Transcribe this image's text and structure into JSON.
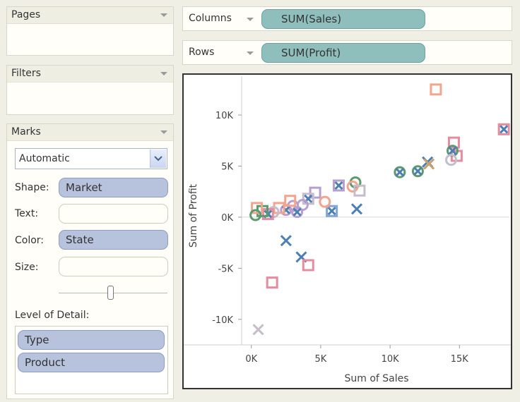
{
  "pages": {
    "title": "Pages"
  },
  "filters": {
    "title": "Filters"
  },
  "marks": {
    "title": "Marks",
    "mark_type": "Automatic",
    "shape_label": "Shape:",
    "shape_value": "Market",
    "text_label": "Text:",
    "text_value": "",
    "color_label": "Color:",
    "color_value": "State",
    "size_label": "Size:",
    "size_value": "",
    "level_of_detail_label": "Level of Detail:",
    "level_of_detail": [
      "Type",
      "Product"
    ]
  },
  "columns_shelf": {
    "label": "Columns",
    "pill": "SUM(Sales)"
  },
  "rows_shelf": {
    "label": "Rows",
    "pill": "SUM(Profit)"
  },
  "colors": {
    "pill_blue": "#b7c2dd",
    "pill_green": "#8fbfbd",
    "mark_blue": "#4e7fb3",
    "mark_pink": "#e58c9f",
    "mark_peach": "#f2a58c",
    "mark_green": "#5a9a6e",
    "mark_lilac": "#b79fd0",
    "mark_grey": "#c7bccc"
  },
  "chart_data": {
    "type": "scatter",
    "xlabel": "Sum of Sales",
    "ylabel": "Sum of Profit",
    "xlim": [
      -700,
      18600
    ],
    "ylim": [
      -12500,
      13800
    ],
    "xticks": [
      0,
      5000,
      10000,
      15000
    ],
    "xtick_labels": [
      "0K",
      "5K",
      "10K",
      "15K"
    ],
    "yticks": [
      -10000,
      -5000,
      0,
      5000,
      10000
    ],
    "ytick_labels": [
      "-10K",
      "-5K",
      "0K",
      "5K",
      "10K"
    ],
    "grid": false,
    "shapes": [
      "square",
      "cross",
      "circle",
      "crossed-circle",
      "crossed-square"
    ],
    "points": [
      {
        "x": 13300,
        "y": 12500,
        "shape": "square",
        "color": "#f2a58c"
      },
      {
        "x": 18200,
        "y": 8600,
        "shape": "crossed-square",
        "color": "#e58c9f"
      },
      {
        "x": 14600,
        "y": 7300,
        "shape": "square",
        "color": "#e58c9f"
      },
      {
        "x": 14800,
        "y": 6000,
        "shape": "square",
        "color": "#e58c9f"
      },
      {
        "x": 14500,
        "y": 6500,
        "shape": "crossed-circle",
        "color": "#5a9a6e"
      },
      {
        "x": 14400,
        "y": 5600,
        "shape": "circle",
        "color": "#c7bccc"
      },
      {
        "x": 12700,
        "y": 5400,
        "shape": "cross",
        "color": "#4e7fb3"
      },
      {
        "x": 12800,
        "y": 5200,
        "shape": "cross",
        "color": "#c8a26b"
      },
      {
        "x": 12000,
        "y": 4500,
        "shape": "crossed-circle",
        "color": "#5a9a6e"
      },
      {
        "x": 10700,
        "y": 4400,
        "shape": "crossed-circle",
        "color": "#5a9a6e"
      },
      {
        "x": 7500,
        "y": 3400,
        "shape": "circle",
        "color": "#5a9a6e"
      },
      {
        "x": 7300,
        "y": 3000,
        "shape": "circle",
        "color": "#f2a58c"
      },
      {
        "x": 6300,
        "y": 3100,
        "shape": "crossed-square",
        "color": "#b79fd0"
      },
      {
        "x": 7800,
        "y": 2600,
        "shape": "square",
        "color": "#c7bccc"
      },
      {
        "x": 7600,
        "y": 800,
        "shape": "cross",
        "color": "#4e7fb3"
      },
      {
        "x": 5800,
        "y": 600,
        "shape": "crossed-square",
        "color": "#7fa7d1"
      },
      {
        "x": 4600,
        "y": 2400,
        "shape": "square",
        "color": "#b79fd0"
      },
      {
        "x": 4100,
        "y": 1800,
        "shape": "crossed-square",
        "color": "#c7bccc"
      },
      {
        "x": 3700,
        "y": 1200,
        "shape": "circle",
        "color": "#b79fd0"
      },
      {
        "x": 3000,
        "y": 1100,
        "shape": "circle",
        "color": "#b79fd0"
      },
      {
        "x": 2500,
        "y": 700,
        "shape": "crossed-circle",
        "color": "#b79fd0"
      },
      {
        "x": 2000,
        "y": 900,
        "shape": "square",
        "color": "#f2a58c"
      },
      {
        "x": 1600,
        "y": 500,
        "shape": "circle",
        "color": "#c7bccc"
      },
      {
        "x": 1200,
        "y": 300,
        "shape": "crossed-square",
        "color": "#e58c9f"
      },
      {
        "x": 800,
        "y": 600,
        "shape": "square",
        "color": "#5a9a6e"
      },
      {
        "x": 400,
        "y": 900,
        "shape": "square",
        "color": "#f2a58c"
      },
      {
        "x": 300,
        "y": 200,
        "shape": "circle",
        "color": "#5a9a6e"
      },
      {
        "x": 2800,
        "y": 1600,
        "shape": "square",
        "color": "#f2a58c"
      },
      {
        "x": 5300,
        "y": 1500,
        "shape": "circle",
        "color": "#f2a58c"
      },
      {
        "x": 3300,
        "y": 500,
        "shape": "crossed-circle",
        "color": "#b79fd0"
      },
      {
        "x": 2500,
        "y": -2300,
        "shape": "cross",
        "color": "#4e7fb3"
      },
      {
        "x": 3600,
        "y": -3900,
        "shape": "cross",
        "color": "#4e7fb3"
      },
      {
        "x": 4100,
        "y": -4700,
        "shape": "square",
        "color": "#e58c9f"
      },
      {
        "x": 1500,
        "y": -6400,
        "shape": "square",
        "color": "#e58c9f"
      },
      {
        "x": 500,
        "y": -11000,
        "shape": "cross",
        "color": "#c7bccc"
      }
    ]
  }
}
